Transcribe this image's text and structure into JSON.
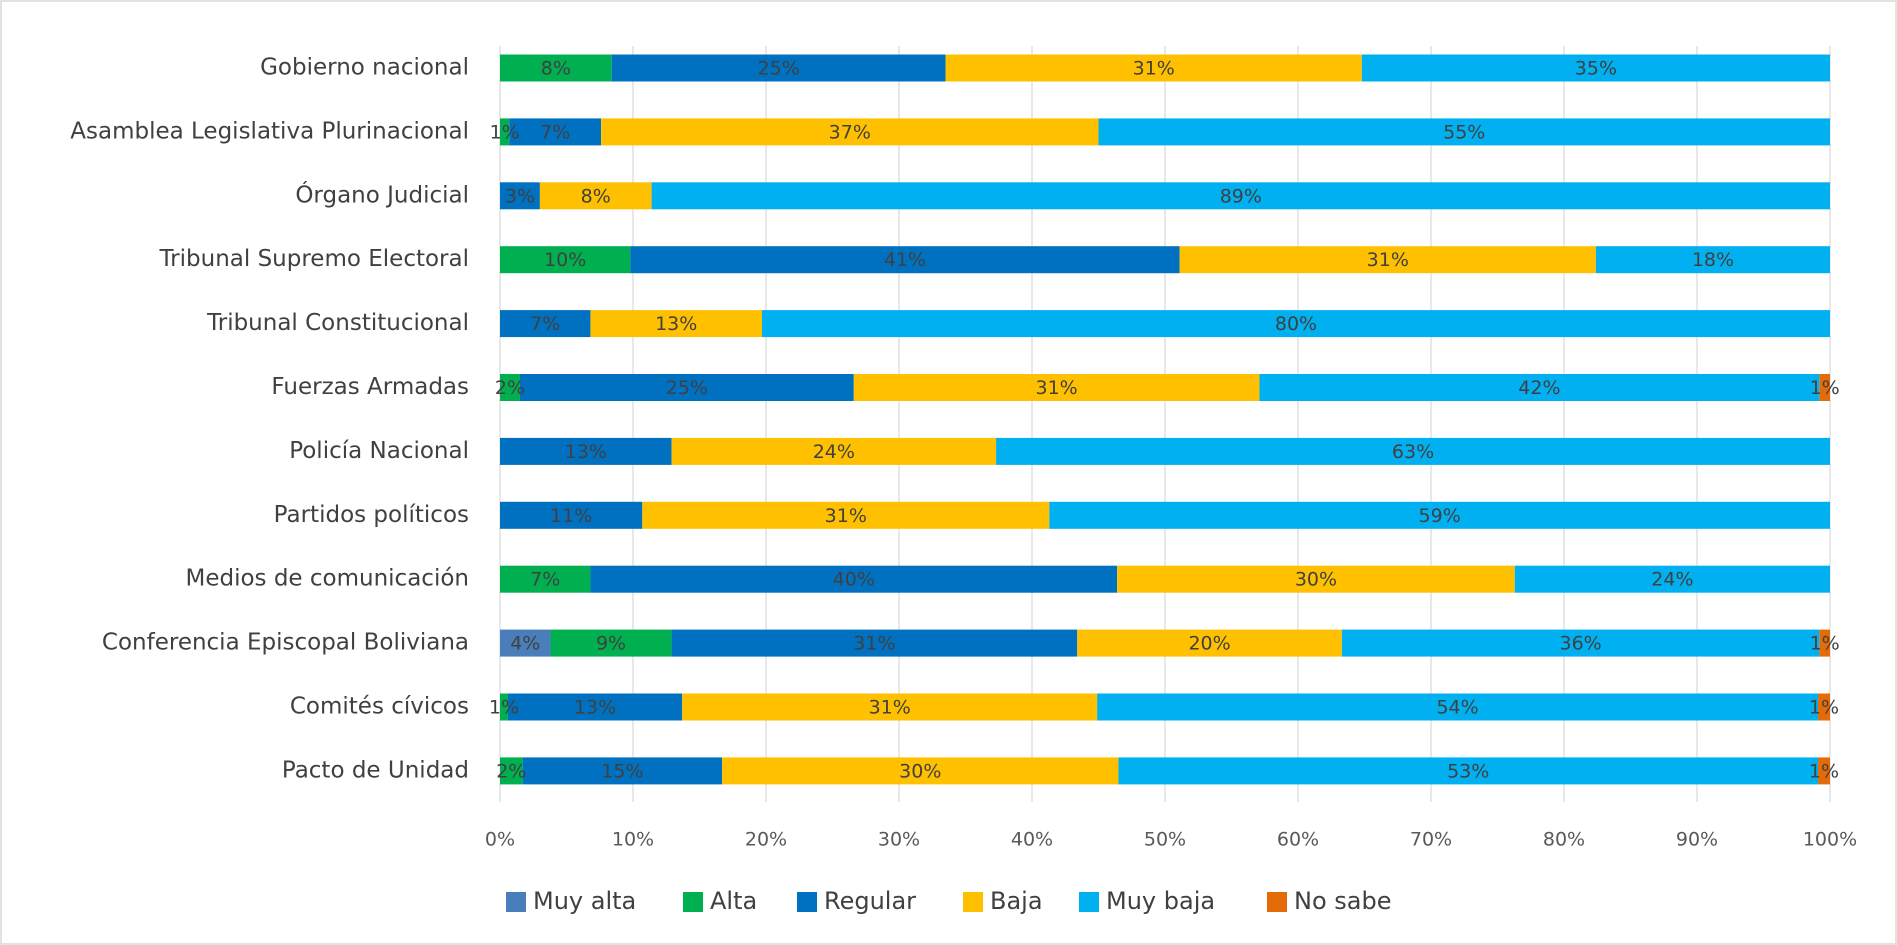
{
  "chart_data": {
    "type": "stacked-bar-horizontal",
    "categories": [
      "Gobierno nacional",
      "Asamblea Legislativa Plurinacional",
      "Órgano Judicial",
      "Tribunal Supremo Electoral",
      "Tribunal Constitucional",
      "Fuerzas Armadas",
      "Policía Nacional",
      "Partidos políticos",
      "Medios de comunicación",
      "Conferencia Episcopal Boliviana",
      "Comités cívicos",
      "Pacto de Unidad"
    ],
    "series": [
      {
        "name": "Muy alta",
        "color": "#4a7ebb",
        "values": [
          null,
          null,
          null,
          null,
          null,
          null,
          null,
          null,
          null,
          3.8,
          null,
          null
        ],
        "value_labels": [
          null,
          null,
          null,
          null,
          null,
          null,
          null,
          null,
          null,
          "4%",
          null,
          null
        ]
      },
      {
        "name": "Alta",
        "color": "#00b050",
        "values": [
          8.4,
          0.7,
          null,
          9.8,
          null,
          1.5,
          null,
          null,
          6.8,
          9.1,
          0.6,
          1.7
        ],
        "value_labels": [
          "8%",
          "1%",
          null,
          "10%",
          null,
          "2%",
          null,
          null,
          "7%",
          "9%",
          "1%",
          "2%"
        ]
      },
      {
        "name": "Regular",
        "color": "#0070c0",
        "values": [
          25.1,
          6.9,
          3.0,
          41.3,
          6.8,
          25.1,
          12.9,
          10.7,
          39.6,
          30.5,
          13.1,
          15.0
        ],
        "value_labels": [
          "25%",
          "7%",
          "3%",
          "41%",
          "7%",
          "25%",
          "13%",
          "11%",
          "40%",
          "31%",
          "13%",
          "15%"
        ]
      },
      {
        "name": "Baja",
        "color": "#ffc000",
        "values": [
          31.3,
          37.4,
          8.4,
          31.3,
          12.9,
          30.5,
          24.4,
          30.6,
          29.9,
          19.9,
          31.2,
          29.8
        ],
        "value_labels": [
          "31%",
          "37%",
          "8%",
          "31%",
          "13%",
          "31%",
          "24%",
          "31%",
          "30%",
          "20%",
          "31%",
          "30%"
        ]
      },
      {
        "name": "Muy baja",
        "color": "#00b0f0",
        "values": [
          35.2,
          55.0,
          88.6,
          17.6,
          80.3,
          42.1,
          62.7,
          58.7,
          23.7,
          35.9,
          54.2,
          52.6
        ],
        "value_labels": [
          "35%",
          "55%",
          "89%",
          "18%",
          "80%",
          "42%",
          "63%",
          "59%",
          "24%",
          "36%",
          "54%",
          "53%"
        ]
      },
      {
        "name": "No sabe",
        "color": "#e36c09",
        "values": [
          null,
          null,
          null,
          null,
          null,
          0.8,
          null,
          null,
          null,
          0.8,
          0.9,
          0.9
        ],
        "value_labels": [
          null,
          null,
          null,
          null,
          null,
          "1%",
          null,
          null,
          null,
          "1%",
          "1%",
          "1%"
        ]
      }
    ],
    "xlim": [
      0,
      100
    ],
    "xticks": [
      {
        "value": 0,
        "label": "0%"
      },
      {
        "value": 10,
        "label": "10%"
      },
      {
        "value": 20,
        "label": "20%"
      },
      {
        "value": 30,
        "label": "30%"
      },
      {
        "value": 40,
        "label": "40%"
      },
      {
        "value": 50,
        "label": "50%"
      },
      {
        "value": 60,
        "label": "60%"
      },
      {
        "value": 70,
        "label": "70%"
      },
      {
        "value": 80,
        "label": "80%"
      },
      {
        "value": 90,
        "label": "90%"
      },
      {
        "value": 100,
        "label": "100%"
      }
    ],
    "grid": true,
    "legend": "bottom"
  }
}
